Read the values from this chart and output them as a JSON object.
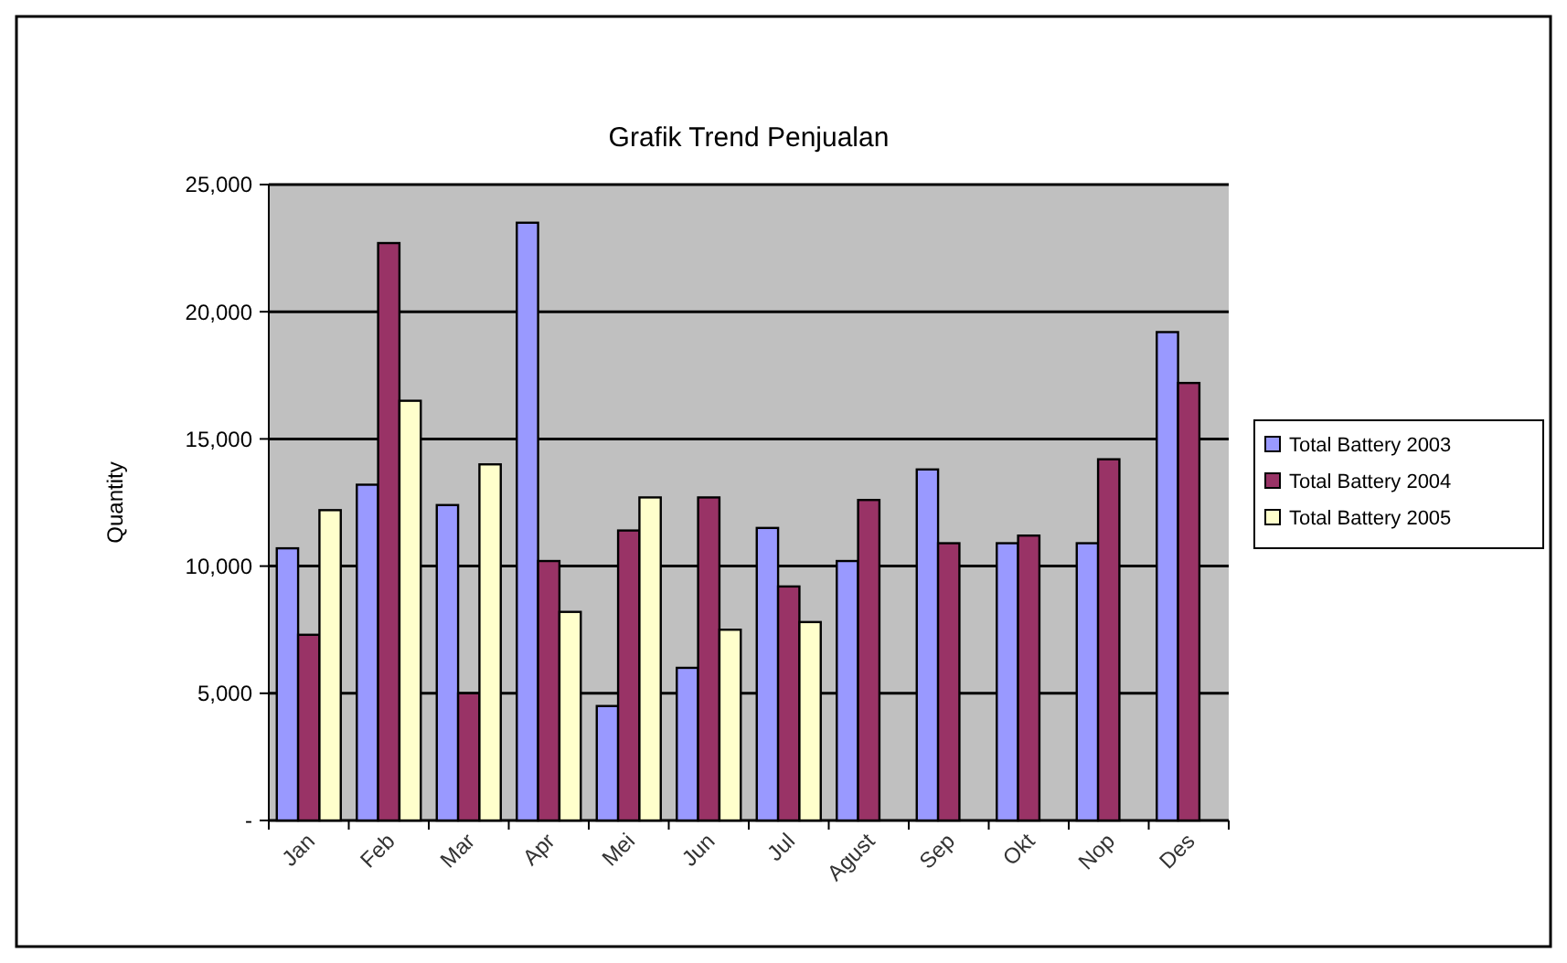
{
  "chart_data": {
    "type": "bar",
    "title": "Grafik Trend Penjualan",
    "ylabel": "Quantity",
    "categories": [
      "Jan",
      "Feb",
      "Mar",
      "Apr",
      "Mei",
      "Jun",
      "Jul",
      "Agust",
      "Sep",
      "Okt",
      "Nop",
      "Des"
    ],
    "series": [
      {
        "name": "Total Battery 2003",
        "color": "#9999ff",
        "values": [
          10700,
          13200,
          12400,
          23500,
          4500,
          6000,
          11500,
          10200,
          13800,
          10900,
          10900,
          19200
        ]
      },
      {
        "name": "Total Battery 2004",
        "color": "#993366",
        "values": [
          7300,
          22700,
          5000,
          10200,
          11400,
          12700,
          9200,
          12600,
          10900,
          11200,
          14200,
          17200
        ]
      },
      {
        "name": "Total Battery 2005",
        "color": "#ffffcc",
        "values": [
          12200,
          16500,
          14000,
          8200,
          12700,
          7500,
          7800,
          null,
          null,
          null,
          null,
          null
        ]
      }
    ],
    "ylim": [
      0,
      25000
    ],
    "yticks": [
      {
        "value": 0,
        "label": "-"
      },
      {
        "value": 5000,
        "label": "5,000"
      },
      {
        "value": 10000,
        "label": "10,000"
      },
      {
        "value": 15000,
        "label": "15,000"
      },
      {
        "value": 20000,
        "label": "20,000"
      },
      {
        "value": 25000,
        "label": "25,000"
      }
    ],
    "grid": "y",
    "legend": "right"
  }
}
